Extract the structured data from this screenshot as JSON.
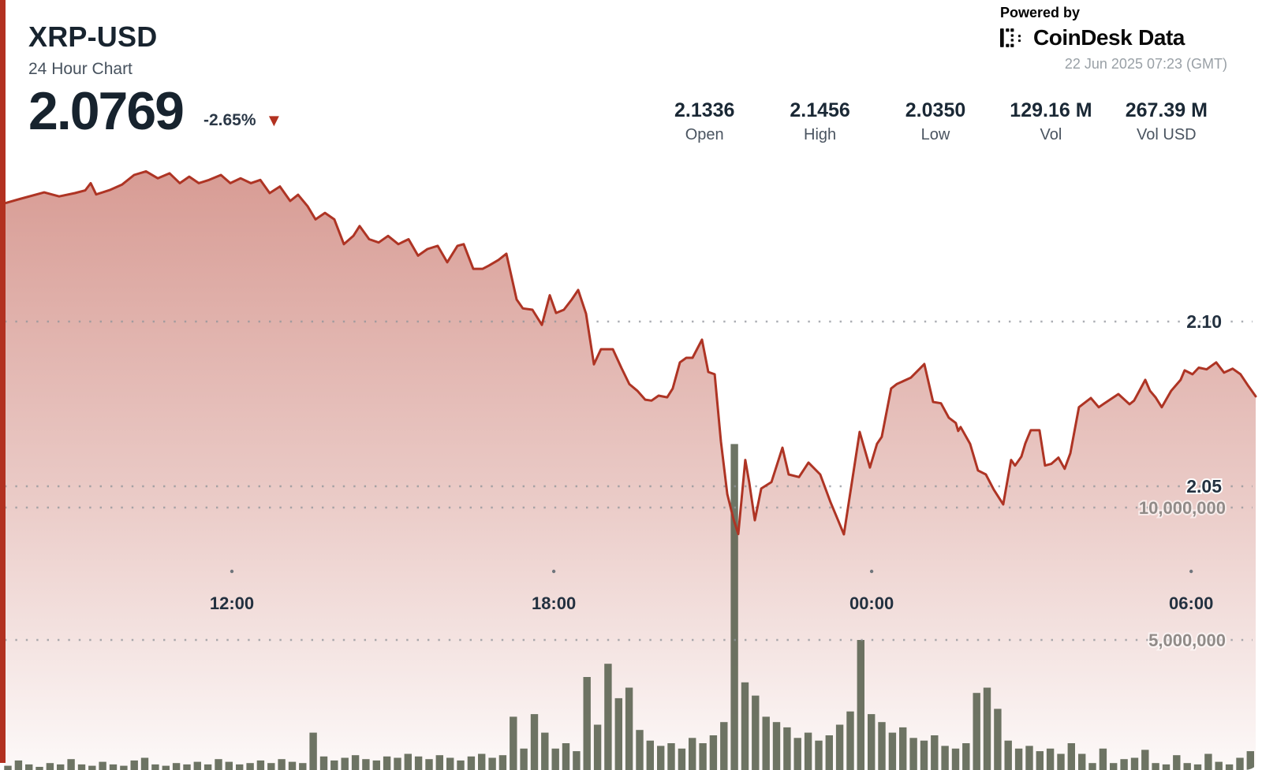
{
  "header": {
    "symbol": "XRP-USD",
    "subtitle": "24 Hour Chart",
    "price": "2.0769",
    "change_percent": "-2.65%",
    "change_direction": "down",
    "change_icon": "▼"
  },
  "branding": {
    "powered_by": "Powered by",
    "brand_name": "CoinDesk",
    "brand_suffix": "Data",
    "timestamp": "22 Jun 2025 07:23 (GMT)"
  },
  "stats": [
    {
      "value": "2.1336",
      "label": "Open"
    },
    {
      "value": "2.1456",
      "label": "High"
    },
    {
      "value": "2.0350",
      "label": "Low"
    },
    {
      "value": "129.16 M",
      "label": "Vol"
    },
    {
      "value": "267.39 M",
      "label": "Vol USD"
    }
  ],
  "colors": {
    "accent_red": "#b23120",
    "line_red": "#ae3424",
    "fill_red": "#b03728",
    "bar_olive": "#59614f",
    "navy_text": "#17232e",
    "gray_text": "#47525e",
    "axis_gray": "#918b88"
  },
  "chart_data": {
    "type": "area",
    "title": "XRP-USD 24 Hour Chart",
    "timezone": "GMT",
    "open": 2.1336,
    "high": 2.1456,
    "low": 2.035,
    "close": 2.0769,
    "volume_label": "129.16 M",
    "volume_usd_label": "267.39 M",
    "grid": "dotted horizontal",
    "legend": "none",
    "x_ticks": [
      {
        "label": "12:00",
        "f": 0.1816
      },
      {
        "label": "18:00",
        "f": 0.4389
      },
      {
        "label": "00:00",
        "f": 0.693
      },
      {
        "label": "06:00",
        "f": 0.9484
      }
    ],
    "price_ticks": [
      {
        "label": "2.10",
        "value": 2.1
      },
      {
        "label": "2.05",
        "value": 2.05
      }
    ],
    "volume_ticks": [
      {
        "label": "10,000,000",
        "value_millions": 10
      },
      {
        "label": "5,000,000",
        "value_millions": 5
      }
    ],
    "price_points": [
      [
        0.0,
        2.1359
      ],
      [
        0.012,
        2.1372
      ],
      [
        0.0315,
        2.1392
      ],
      [
        0.0435,
        2.138
      ],
      [
        0.0561,
        2.139
      ],
      [
        0.0643,
        2.1398
      ],
      [
        0.0687,
        2.142
      ],
      [
        0.0731,
        2.1386
      ],
      [
        0.0845,
        2.14
      ],
      [
        0.0939,
        2.1416
      ],
      [
        0.1034,
        2.1445
      ],
      [
        0.1129,
        2.1456
      ],
      [
        0.1223,
        2.1435
      ],
      [
        0.1318,
        2.145
      ],
      [
        0.14,
        2.142
      ],
      [
        0.1475,
        2.144
      ],
      [
        0.1551,
        2.142
      ],
      [
        0.1633,
        2.143
      ],
      [
        0.1728,
        2.1445
      ],
      [
        0.1803,
        2.142
      ],
      [
        0.1885,
        2.1435
      ],
      [
        0.1967,
        2.142
      ],
      [
        0.2043,
        2.143
      ],
      [
        0.2118,
        2.139
      ],
      [
        0.22,
        2.141
      ],
      [
        0.2282,
        2.1366
      ],
      [
        0.2345,
        2.1385
      ],
      [
        0.2421,
        2.135
      ],
      [
        0.2484,
        2.131
      ],
      [
        0.256,
        2.133
      ],
      [
        0.2635,
        2.131
      ],
      [
        0.2711,
        2.1235
      ],
      [
        0.2787,
        2.126
      ],
      [
        0.2837,
        2.129
      ],
      [
        0.2913,
        2.125
      ],
      [
        0.2989,
        2.124
      ],
      [
        0.3064,
        2.126
      ],
      [
        0.3146,
        2.1235
      ],
      [
        0.3228,
        2.125
      ],
      [
        0.3304,
        2.12
      ],
      [
        0.3379,
        2.122
      ],
      [
        0.3461,
        2.123
      ],
      [
        0.3537,
        2.118
      ],
      [
        0.3619,
        2.123
      ],
      [
        0.3669,
        2.1235
      ],
      [
        0.3745,
        2.116
      ],
      [
        0.3821,
        2.116
      ],
      [
        0.3871,
        2.117
      ],
      [
        0.3947,
        2.1187
      ],
      [
        0.401,
        2.1206
      ],
      [
        0.4092,
        2.1067
      ],
      [
        0.4142,
        2.104
      ],
      [
        0.4218,
        2.1036
      ],
      [
        0.4294,
        2.099
      ],
      [
        0.4357,
        2.108
      ],
      [
        0.4407,
        2.1026
      ],
      [
        0.447,
        2.1036
      ],
      [
        0.4533,
        2.1067
      ],
      [
        0.4584,
        2.1096
      ],
      [
        0.4647,
        2.1024
      ],
      [
        0.471,
        2.087
      ],
      [
        0.4766,
        2.0916
      ],
      [
        0.4861,
        2.0916
      ],
      [
        0.493,
        2.0859
      ],
      [
        0.4993,
        2.081
      ],
      [
        0.5057,
        2.079
      ],
      [
        0.512,
        2.0763
      ],
      [
        0.517,
        2.076
      ],
      [
        0.5227,
        2.0775
      ],
      [
        0.5296,
        2.077
      ],
      [
        0.534,
        2.0797
      ],
      [
        0.5397,
        2.0876
      ],
      [
        0.5448,
        2.089
      ],
      [
        0.5498,
        2.089
      ],
      [
        0.5574,
        2.0945
      ],
      [
        0.5624,
        2.0847
      ],
      [
        0.5675,
        2.084
      ],
      [
        0.5725,
        2.0636
      ],
      [
        0.5776,
        2.0476
      ],
      [
        0.5826,
        2.04
      ],
      [
        0.5864,
        2.0355
      ],
      [
        0.592,
        2.058
      ],
      [
        0.5952,
        2.051
      ],
      [
        0.5996,
        2.0397
      ],
      [
        0.6047,
        2.0493
      ],
      [
        0.6129,
        2.0513
      ],
      [
        0.6217,
        2.0617
      ],
      [
        0.6267,
        2.0536
      ],
      [
        0.6349,
        2.0528
      ],
      [
        0.6425,
        2.0572
      ],
      [
        0.6519,
        2.0536
      ],
      [
        0.6601,
        2.0452
      ],
      [
        0.6658,
        2.04
      ],
      [
        0.6708,
        2.0354
      ],
      [
        0.6834,
        2.0665
      ],
      [
        0.6916,
        2.0557
      ],
      [
        0.6973,
        2.0629
      ],
      [
        0.7011,
        2.065
      ],
      [
        0.7086,
        2.0797
      ],
      [
        0.713,
        2.081
      ],
      [
        0.7244,
        2.083
      ],
      [
        0.7351,
        2.0871
      ],
      [
        0.7421,
        2.0756
      ],
      [
        0.7484,
        2.0752
      ],
      [
        0.7547,
        2.0708
      ],
      [
        0.7603,
        2.0692
      ],
      [
        0.7622,
        2.0668
      ],
      [
        0.7641,
        2.068
      ],
      [
        0.7717,
        2.0629
      ],
      [
        0.778,
        2.0548
      ],
      [
        0.7843,
        2.0536
      ],
      [
        0.7906,
        2.049
      ],
      [
        0.7982,
        2.0445
      ],
      [
        0.8045,
        2.058
      ],
      [
        0.8076,
        2.0563
      ],
      [
        0.8127,
        2.059
      ],
      [
        0.8158,
        2.063
      ],
      [
        0.8202,
        2.067
      ],
      [
        0.8272,
        2.067
      ],
      [
        0.8316,
        2.0563
      ],
      [
        0.8366,
        2.0568
      ],
      [
        0.8423,
        2.0587
      ],
      [
        0.8473,
        2.0553
      ],
      [
        0.8518,
        2.06
      ],
      [
        0.8587,
        2.074
      ],
      [
        0.8682,
        2.0768
      ],
      [
        0.8745,
        2.074
      ],
      [
        0.8808,
        2.0756
      ],
      [
        0.8902,
        2.078
      ],
      [
        0.8991,
        2.0749
      ],
      [
        0.9028,
        2.076
      ],
      [
        0.9117,
        2.0823
      ],
      [
        0.9155,
        2.079
      ],
      [
        0.9199,
        2.077
      ],
      [
        0.9249,
        2.074
      ],
      [
        0.9325,
        2.079
      ],
      [
        0.94,
        2.0823
      ],
      [
        0.9432,
        2.0852
      ],
      [
        0.9495,
        2.084
      ],
      [
        0.9545,
        2.086
      ],
      [
        0.9608,
        2.0855
      ],
      [
        0.9684,
        2.0876
      ],
      [
        0.9747,
        2.0845
      ],
      [
        0.9816,
        2.0857
      ],
      [
        0.9879,
        2.084
      ],
      [
        0.9942,
        2.0804
      ],
      [
        1.0,
        2.0773
      ]
    ],
    "volume_millions": [
      0.25,
      0.45,
      0.3,
      0.2,
      0.35,
      0.3,
      0.5,
      0.3,
      0.25,
      0.4,
      0.3,
      0.25,
      0.45,
      0.55,
      0.3,
      0.25,
      0.35,
      0.3,
      0.4,
      0.3,
      0.5,
      0.4,
      0.3,
      0.35,
      0.45,
      0.35,
      0.5,
      0.4,
      0.35,
      1.5,
      0.6,
      0.45,
      0.55,
      0.65,
      0.5,
      0.45,
      0.6,
      0.55,
      0.7,
      0.6,
      0.5,
      0.65,
      0.55,
      0.45,
      0.6,
      0.7,
      0.55,
      0.65,
      2.1,
      0.9,
      2.2,
      1.5,
      0.9,
      1.1,
      0.8,
      3.6,
      1.8,
      4.1,
      2.8,
      3.2,
      1.6,
      1.2,
      1.0,
      1.1,
      0.9,
      1.3,
      1.1,
      1.4,
      1.9,
      12.4,
      3.4,
      2.9,
      2.1,
      1.9,
      1.7,
      1.3,
      1.5,
      1.2,
      1.4,
      1.8,
      2.3,
      5.0,
      2.2,
      1.9,
      1.5,
      1.7,
      1.3,
      1.2,
      1.4,
      1.0,
      0.9,
      1.1,
      3.0,
      3.2,
      2.4,
      1.2,
      0.9,
      1.0,
      0.8,
      0.9,
      0.7,
      1.1,
      0.7,
      0.35,
      0.9,
      0.35,
      0.5,
      0.55,
      0.85,
      0.35,
      0.3,
      0.65,
      0.35,
      0.3,
      0.7,
      0.4,
      0.3,
      0.55,
      0.8
    ]
  }
}
